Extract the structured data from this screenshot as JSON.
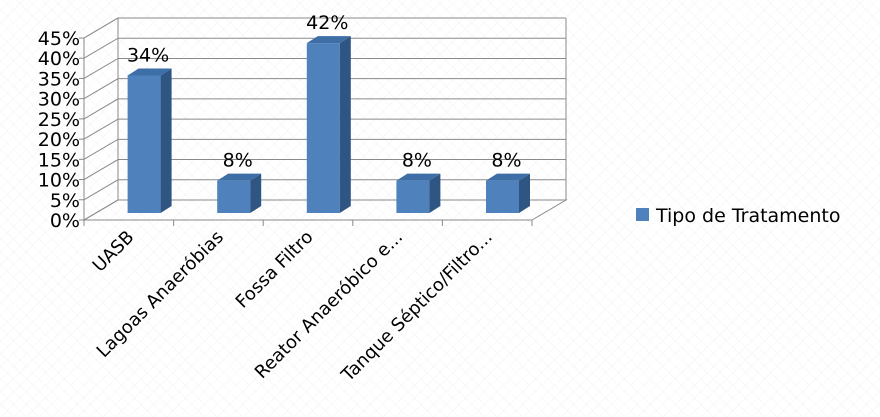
{
  "chart_data": {
    "type": "bar",
    "categories": [
      "UASB",
      "Lagoas Anaeróbias",
      "Fossa Filtro",
      "Reator Anaeróbico e...",
      "Tanque Séptico/Filtro..."
    ],
    "series": [
      {
        "name": "Tipo de Tratamento",
        "values": [
          34,
          8,
          42,
          8,
          8
        ],
        "data_labels": [
          "34%",
          "8%",
          "42%",
          "8%",
          "8%"
        ],
        "color": "#4F81BD"
      }
    ],
    "y_ticks": [
      "0%",
      "5%",
      "10%",
      "15%",
      "20%",
      "25%",
      "30%",
      "35%",
      "40%",
      "45%"
    ],
    "ylim": [
      0,
      45
    ],
    "y_unit": "%",
    "grid": true,
    "legend_position": "right",
    "style": "3d-column"
  }
}
